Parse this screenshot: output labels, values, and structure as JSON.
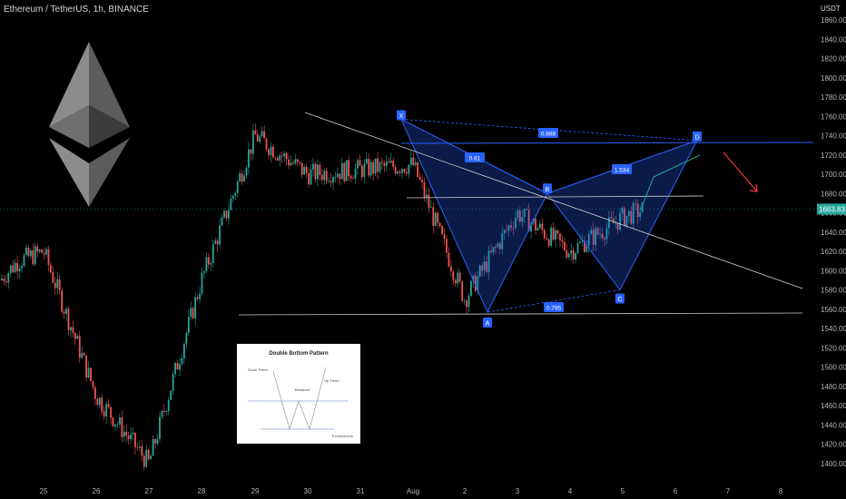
{
  "symbol_title": "Ethereum / TetherUS, 1h, BINANCE",
  "currency": "USDT",
  "price_axis_labels": [
    "1860.00",
    "1840.00",
    "1820.00",
    "1800.00",
    "1780.00",
    "1760.00",
    "1740.00",
    "1720.00",
    "1700.00",
    "1680.00",
    "1660.00",
    "1640.00",
    "1620.00",
    "1600.00",
    "1580.00",
    "1560.00",
    "1540.00",
    "1520.00",
    "1500.00",
    "1480.00",
    "1460.00",
    "1440.00",
    "1420.00",
    "1400.00"
  ],
  "time_axis_labels": [
    "25",
    "26",
    "27",
    "28",
    "29",
    "30",
    "31",
    "Aug",
    "2",
    "3",
    "4",
    "5",
    "6",
    "7",
    "8"
  ],
  "current_price": "1663.83",
  "pattern_labels": {
    "x": "X",
    "a": "A",
    "b": "B",
    "c": "C",
    "d": "D"
  },
  "ratio_labels": {
    "xb": "0.61",
    "xd": "0.888",
    "bd": "1.534",
    "ac": "0.795"
  },
  "inset": {
    "title": "Double Bottom Pattern",
    "down_trend": "Down Trend",
    "breakout": "Breakout",
    "up_trend": "Up Trend",
    "brand": "ThinkMarkets"
  },
  "colors": {
    "up": "#26a69a",
    "down": "#ef5350",
    "harmonic": "#2962ff",
    "price_tag": "#26a69a",
    "arrow": "#f23645"
  },
  "icons": {
    "logo": "ethereum-logo-icon"
  },
  "chart_data": {
    "type": "candlestick",
    "title": "Ethereum / TetherUS, 1h, BINANCE",
    "y_unit": "USDT",
    "ylim": [
      1395,
      1870
    ],
    "x_categories": [
      "25",
      "26",
      "27",
      "28",
      "29",
      "30",
      "31",
      "Aug",
      "2",
      "3",
      "4",
      "5",
      "6",
      "7",
      "8"
    ],
    "key_closes": [
      {
        "t": "25",
        "price": 1620
      },
      {
        "t": "26",
        "price": 1470
      },
      {
        "t": "27",
        "price": 1400
      },
      {
        "t": "28",
        "price": 1590
      },
      {
        "t": "29",
        "price": 1740
      },
      {
        "t": "30",
        "price": 1700
      },
      {
        "t": "31",
        "price": 1705
      },
      {
        "t": "Aug",
        "price": 1710
      },
      {
        "t": "2",
        "price": 1570
      },
      {
        "t": "3",
        "price": 1660
      },
      {
        "t": "4",
        "price": 1620
      },
      {
        "t": "5",
        "price": 1655
      }
    ],
    "harmonic_points": [
      {
        "label": "X",
        "t": "Aug",
        "price": 1757
      },
      {
        "label": "A",
        "t": "2",
        "price": 1557
      },
      {
        "label": "B",
        "t": "3",
        "price": 1680
      },
      {
        "label": "C",
        "t": "5",
        "price": 1580
      },
      {
        "label": "D",
        "t": "6",
        "price": 1735
      }
    ],
    "ratios": {
      "XB": 0.61,
      "XD": 0.888,
      "BD": 1.534,
      "AC": 0.795
    },
    "current_price": 1663.83,
    "grid": false
  }
}
